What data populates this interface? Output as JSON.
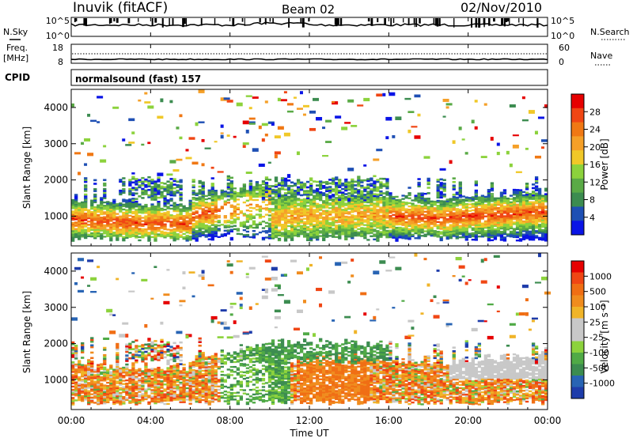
{
  "header": {
    "station": "Inuvik (fitACF)",
    "beam": "Beam 02",
    "date": "02/Nov/2010"
  },
  "side_labels": {
    "nsky": "N.Sky",
    "nsearch": "N.Search",
    "freq": "Freq.",
    "freq_unit": "[MHz]",
    "nave": "Nave",
    "cpid": "CPID"
  },
  "cpid_text": "normalsound (fast) 157",
  "time_axis": {
    "label": "Time UT",
    "ticks": [
      "00:00",
      "04:00",
      "08:00",
      "12:00",
      "16:00",
      "20:00",
      "00:00"
    ]
  },
  "noise_panel": {
    "left_ticks": [
      "10^5",
      "10^0"
    ],
    "right_ticks": [
      "10^5",
      "10^0"
    ]
  },
  "freq_panel": {
    "left_ticks": [
      "18",
      "8"
    ],
    "right_ticks": [
      "60",
      "0"
    ]
  },
  "power_panel": {
    "ylabel": "Slant Range [km]",
    "yticks": [
      "4000",
      "3000",
      "2000",
      "1000"
    ],
    "colorbar_label": "Power [dB]",
    "colorbar_ticks": [
      "28",
      "24",
      "20",
      "16",
      "12",
      "8",
      "4"
    ],
    "colors": [
      "#0a14e6",
      "#1e4fb4",
      "#3c8c50",
      "#5aaa46",
      "#8cd23c",
      "#f0c828",
      "#f5a028",
      "#f07814",
      "#f04614",
      "#e60000"
    ]
  },
  "velocity_panel": {
    "ylabel": "Slant Range [km]",
    "yticks": [
      "4000",
      "3000",
      "2000",
      "1000"
    ],
    "colorbar_label": "Velocity [m s⁻¹]",
    "colorbar_ticks": [
      "1000",
      "500",
      "100",
      "25",
      "-25",
      "-100",
      "-500",
      "-1000"
    ],
    "colors": [
      "#1e3caa",
      "#2864b4",
      "#3c8c50",
      "#50aa46",
      "#8cd23c",
      "#c8c8c8",
      "#c8c8c8",
      "#f0b428",
      "#f08c1e",
      "#f06e14",
      "#f04614",
      "#e60000"
    ]
  },
  "chart_data": {
    "type": "heatmap",
    "title": "Inuvik (fitACF)  Beam 02  02/Nov/2010",
    "xlabel": "Time UT",
    "ylabel": "Slant Range [km]",
    "x_range": [
      "00:00",
      "24:00"
    ],
    "ylim": [
      180,
      4500
    ],
    "series": [
      {
        "name": "Power [dB]",
        "range": [
          0,
          32
        ]
      },
      {
        "name": "Velocity [m s⁻¹]",
        "range": [
          -1000,
          1000
        ]
      }
    ]
  }
}
